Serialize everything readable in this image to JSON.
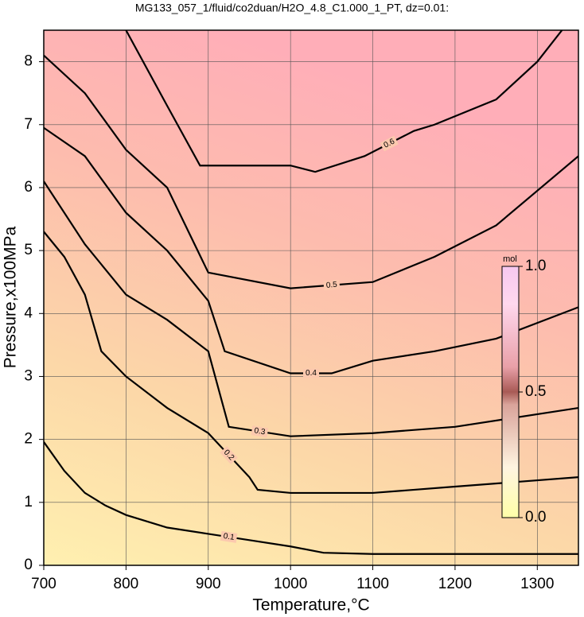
{
  "chart_data": {
    "type": "contour",
    "title": "MG133_057_1/fluid/co2duan/H2O_4.8_C1.000_1_PT, dz=0.01:",
    "x_label": "Temperature,°C",
    "y_label": "Pressure,x100MPa",
    "xlim": [
      700,
      1350
    ],
    "ylim": [
      0,
      8.5
    ],
    "xticks": [
      700,
      800,
      900,
      1000,
      1100,
      1200,
      1300
    ],
    "yticks": [
      0,
      1,
      2,
      3,
      4,
      5,
      6,
      7,
      8
    ],
    "grid": true,
    "contours": [
      {
        "level": 0.1,
        "x": [
          700,
          725,
          750,
          775,
          800,
          850,
          900,
          950,
          1000,
          1040,
          1100,
          1200,
          1350
        ],
        "y": [
          1.96,
          1.5,
          1.15,
          0.95,
          0.8,
          0.6,
          0.5,
          0.4,
          0.3,
          0.2,
          0.18,
          0.18,
          0.18
        ]
      },
      {
        "level": 0.2,
        "x": [
          700,
          725,
          750,
          770,
          800,
          850,
          900,
          950,
          960,
          1000,
          1100,
          1200,
          1350
        ],
        "y": [
          5.3,
          4.9,
          4.3,
          3.4,
          3.0,
          2.5,
          2.1,
          1.4,
          1.2,
          1.15,
          1.15,
          1.25,
          1.4
        ]
      },
      {
        "level": 0.3,
        "x": [
          700,
          750,
          800,
          850,
          900,
          925,
          1000,
          1100,
          1200,
          1350
        ],
        "y": [
          6.1,
          5.1,
          4.3,
          3.9,
          3.4,
          2.2,
          2.05,
          2.1,
          2.2,
          2.5
        ]
      },
      {
        "level": 0.4,
        "x": [
          700,
          750,
          800,
          850,
          900,
          920,
          1000,
          1050,
          1100,
          1175,
          1250,
          1350
        ],
        "y": [
          6.95,
          6.5,
          5.6,
          5.0,
          4.2,
          3.4,
          3.05,
          3.05,
          3.25,
          3.4,
          3.6,
          4.1
        ]
      },
      {
        "level": 0.5,
        "x": [
          700,
          750,
          800,
          850,
          900,
          1000,
          1100,
          1175,
          1250,
          1350
        ],
        "y": [
          8.1,
          7.5,
          6.6,
          6.0,
          4.65,
          4.4,
          4.5,
          4.9,
          5.4,
          6.5
        ]
      },
      {
        "level": 0.6,
        "x": [
          800,
          850,
          890,
          1000,
          1030,
          1090,
          1150,
          1175,
          1250,
          1300,
          1330
        ],
        "y": [
          8.5,
          7.3,
          6.35,
          6.35,
          6.25,
          6.5,
          6.9,
          7.0,
          7.4,
          8.0,
          8.5
        ]
      }
    ],
    "colorbar": {
      "label": "mol",
      "lim": [
        0,
        1
      ],
      "ticks": [
        {
          "value": 0,
          "label": "0.0"
        },
        0.5,
        {
          "value": 1,
          "label": "1.0"
        }
      ]
    }
  }
}
